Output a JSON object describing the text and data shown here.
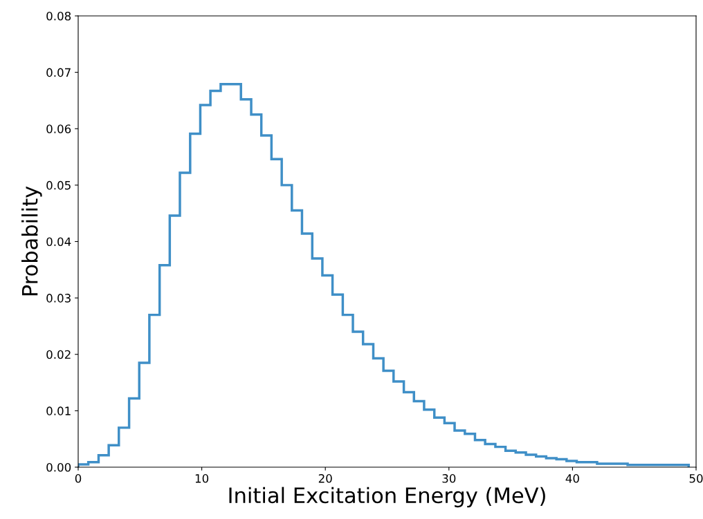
{
  "chart_data": {
    "type": "histogram",
    "xlabel": "Initial Excitation Energy (MeV)",
    "ylabel": "Probability",
    "color": "#3f8fc7",
    "bins": [
      0,
      0.82,
      1.65,
      2.47,
      3.29,
      4.12,
      4.94,
      5.76,
      6.59,
      7.41,
      8.23,
      9.06,
      9.88,
      10.7,
      11.53,
      12.35,
      13.17,
      14.0,
      14.82,
      15.64,
      16.47,
      17.29,
      18.11,
      18.94,
      19.76,
      20.58,
      21.41,
      22.23,
      23.05,
      23.88,
      24.7,
      25.52,
      26.35,
      27.17,
      27.99,
      28.82,
      29.64,
      30.46,
      31.29,
      32.11,
      32.93,
      33.76,
      34.58,
      35.4,
      36.23,
      37.05,
      37.87,
      38.7,
      39.52,
      40.34,
      41.17,
      41.99,
      42.81,
      43.64,
      44.46,
      45.28,
      46.11,
      46.93,
      47.75,
      48.58,
      49.4
    ],
    "values": [
      0.0005,
      0.0009,
      0.0021,
      0.0039,
      0.007,
      0.0122,
      0.0185,
      0.027,
      0.0358,
      0.0446,
      0.0522,
      0.0591,
      0.0642,
      0.0667,
      0.0679,
      0.0679,
      0.0652,
      0.0625,
      0.0588,
      0.0546,
      0.05,
      0.0455,
      0.0414,
      0.037,
      0.034,
      0.0306,
      0.027,
      0.024,
      0.0218,
      0.0193,
      0.0171,
      0.0152,
      0.0133,
      0.0117,
      0.0102,
      0.0088,
      0.0078,
      0.0065,
      0.0059,
      0.0048,
      0.0041,
      0.0036,
      0.0029,
      0.0026,
      0.0022,
      0.0019,
      0.0016,
      0.0014,
      0.0011,
      0.0009,
      0.0009,
      0.0006,
      0.0006,
      0.0006,
      0.0004,
      0.0004,
      0.0004,
      0.0004,
      0.0004,
      0.0004
    ],
    "xlim": [
      0,
      50
    ],
    "xticks": [
      0,
      10,
      20,
      30,
      40,
      50
    ],
    "ylim": [
      0,
      0.08
    ],
    "yticks": [
      {
        "value": 0,
        "label": "0.00"
      },
      {
        "value": 0.01,
        "label": "0.01"
      },
      {
        "value": 0.02,
        "label": "0.02"
      },
      {
        "value": 0.03,
        "label": "0.03"
      },
      {
        "value": 0.04,
        "label": "0.04"
      },
      {
        "value": 0.05,
        "label": "0.05"
      },
      {
        "value": 0.06,
        "label": "0.06"
      },
      {
        "value": 0.07,
        "label": "0.07"
      },
      {
        "value": 0.08,
        "label": "0.08"
      }
    ]
  }
}
